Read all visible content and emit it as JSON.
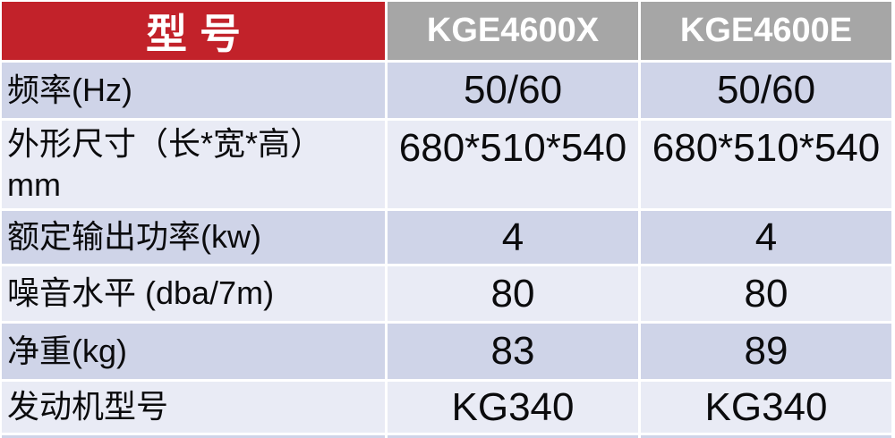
{
  "header": {
    "model_label": "型号",
    "columns": [
      "KGE4600X",
      "KGE4600E"
    ]
  },
  "rows": [
    {
      "label": "频率(Hz)",
      "v1": "50/60",
      "v2": "50/60"
    },
    {
      "label": "外形尺寸（长*宽*高）\nmm",
      "v1": "680*510*540",
      "v2": "680*510*540"
    },
    {
      "label": "额定输出功率(kw)",
      "v1": "4",
      "v2": "4"
    },
    {
      "label": "噪音水平 (dba/7m)",
      "v1": "80",
      "v2": "80"
    },
    {
      "label": "净重(kg)",
      "v1": "83",
      "v2": "89"
    },
    {
      "label": "发动机型号",
      "v1": "KG340",
      "v2": "KG340"
    }
  ],
  "colors": {
    "accent_red": "#c2222a",
    "header_gray": "#a6a6a6",
    "row_dark": "#cfd4e8",
    "row_light": "#e9ebf5",
    "grid_white": "#ffffff",
    "text_dark": "#0b0b0d",
    "text_light": "#ffffff"
  }
}
